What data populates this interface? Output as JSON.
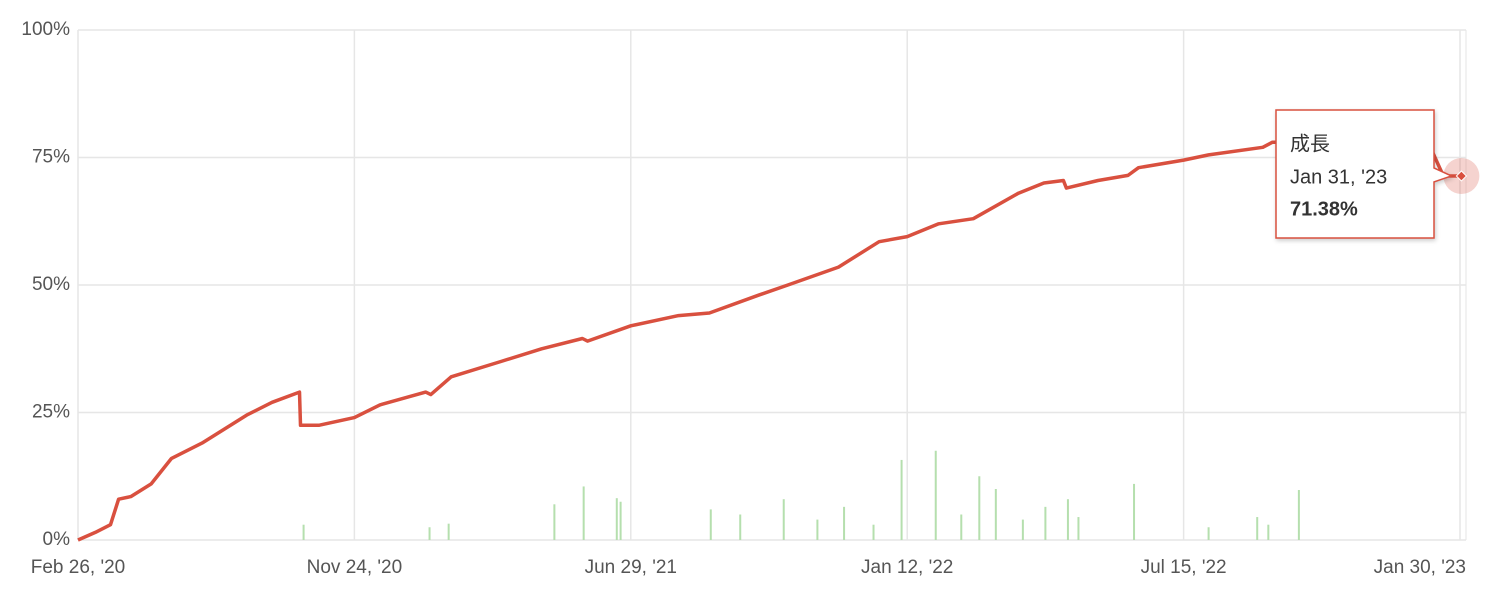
{
  "chart_data": {
    "type": "line",
    "xticks": [
      {
        "value": "2020-02-26",
        "label": "Feb 26, '20"
      },
      {
        "value": "2020-11-24",
        "label": "Nov 24, '20"
      },
      {
        "value": "2021-06-29",
        "label": "Jun 29, '21"
      },
      {
        "value": "2022-01-12",
        "label": "Jan 12, '22"
      },
      {
        "value": "2022-07-15",
        "label": "Jul 15, '22"
      },
      {
        "value": "2023-01-30",
        "label": "Jan 30, '23"
      }
    ],
    "ylim": [
      0,
      100
    ],
    "yticks": [
      {
        "value": 0,
        "label": "0%"
      },
      {
        "value": 25,
        "label": "25%"
      },
      {
        "value": 50,
        "label": "50%"
      },
      {
        "value": 75,
        "label": "75%"
      },
      {
        "value": 100,
        "label": "100%"
      }
    ],
    "grid": true,
    "series": [
      {
        "name": "成長",
        "type": "line",
        "color": "#d9503f",
        "x": [
          "2020-02-26",
          "2020-03-14",
          "2020-03-29",
          "2020-04-06",
          "2020-04-18",
          "2020-05-08",
          "2020-05-28",
          "2020-06-27",
          "2020-08-10",
          "2020-09-04",
          "2020-10-01",
          "2020-10-02",
          "2020-10-20",
          "2020-11-24",
          "2020-12-14",
          "2021-01-19",
          "2021-01-23",
          "2021-02-08",
          "2021-03-19",
          "2021-04-20",
          "2021-05-22",
          "2021-05-26",
          "2021-06-29",
          "2021-08-02",
          "2021-08-24",
          "2021-09-28",
          "2021-10-19",
          "2021-11-24",
          "2021-12-23",
          "2022-01-12",
          "2022-02-02",
          "2022-02-25",
          "2022-03-27",
          "2022-04-13",
          "2022-04-26",
          "2022-04-28",
          "2022-05-19",
          "2022-06-08",
          "2022-06-15",
          "2022-07-15",
          "2022-08-02",
          "2022-09-10",
          "2022-09-17",
          "2023-01-07",
          "2023-01-18",
          "2023-01-31"
        ],
        "values": [
          0,
          1.5,
          3,
          8,
          8.5,
          11,
          16,
          19,
          24.5,
          27,
          29,
          22.5,
          22.5,
          24,
          26.5,
          29,
          28.5,
          32,
          35,
          37.5,
          39.5,
          39,
          42,
          44,
          44.5,
          48,
          50,
          53.5,
          58.5,
          59.5,
          62,
          63,
          68,
          70,
          70.5,
          69,
          70.5,
          71.5,
          73,
          74.5,
          75.5,
          77,
          78,
          78,
          71.4,
          71.38
        ]
      },
      {
        "type": "bar",
        "color": "#b5dfae",
        "x": [
          "2020-10-05",
          "2021-01-22",
          "2021-02-06",
          "2021-04-30",
          "2021-05-23",
          "2021-06-18",
          "2021-06-21",
          "2021-08-25",
          "2021-09-15",
          "2021-10-16",
          "2021-11-09",
          "2021-11-28",
          "2021-12-19",
          "2022-01-08",
          "2022-01-31",
          "2022-02-17",
          "2022-03-01",
          "2022-03-12",
          "2022-03-30",
          "2022-04-14",
          "2022-04-29",
          "2022-05-06",
          "2022-06-12",
          "2022-08-02",
          "2022-09-06",
          "2022-09-14",
          "2022-10-06"
        ],
        "values": [
          3,
          2.5,
          3.2,
          7,
          10.5,
          8.2,
          7.5,
          6,
          5,
          8,
          4,
          6.5,
          3,
          15.7,
          17.5,
          5,
          12.5,
          10,
          4,
          6.5,
          8,
          4.5,
          11,
          2.5,
          4.5,
          3,
          9.8
        ]
      }
    ],
    "tooltip": {
      "date": "Jan 31, '23",
      "value": 71.38,
      "value_label": "71.38%"
    }
  }
}
